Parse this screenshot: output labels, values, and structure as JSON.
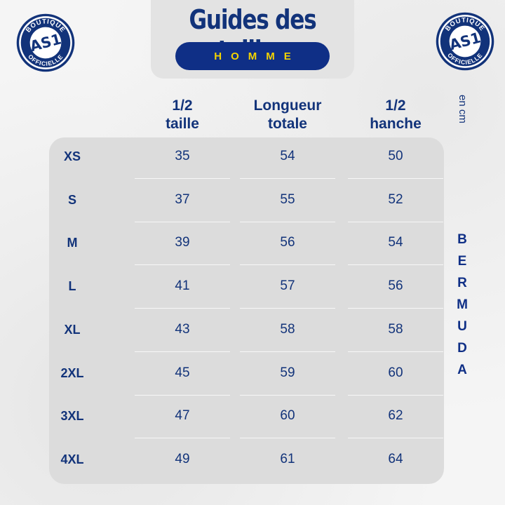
{
  "title": "Guides des tailles",
  "subtitle": "HOMME",
  "logo": {
    "top_text": "BOUTIQUE",
    "bottom_text": "OFFICIELLE",
    "mark": "AS1"
  },
  "columns": {
    "taille": {
      "line1": "1/2",
      "line2": "taille"
    },
    "longueur": {
      "line1": "Longueur",
      "line2": "totale"
    },
    "hanche": {
      "line1": "1/2",
      "line2": "hanche"
    }
  },
  "unit": "en cm",
  "product": [
    "B",
    "E",
    "R",
    "M",
    "U",
    "D",
    "A"
  ],
  "rows": [
    {
      "size": "XS",
      "taille": "35",
      "longueur": "54",
      "hanche": "50"
    },
    {
      "size": "S",
      "taille": "37",
      "longueur": "55",
      "hanche": "52"
    },
    {
      "size": "M",
      "taille": "39",
      "longueur": "56",
      "hanche": "54"
    },
    {
      "size": "L",
      "taille": "41",
      "longueur": "57",
      "hanche": "56"
    },
    {
      "size": "XL",
      "taille": "43",
      "longueur": "58",
      "hanche": "58"
    },
    {
      "size": "2XL",
      "taille": "45",
      "longueur": "59",
      "hanche": "60"
    },
    {
      "size": "3XL",
      "taille": "47",
      "longueur": "60",
      "hanche": "62"
    },
    {
      "size": "4XL",
      "taille": "49",
      "longueur": "61",
      "hanche": "64"
    }
  ],
  "colors": {
    "navy": "#12337a",
    "pill": "#0f2f86",
    "yellow": "#f4d400",
    "panel": "#dcdcdc"
  }
}
